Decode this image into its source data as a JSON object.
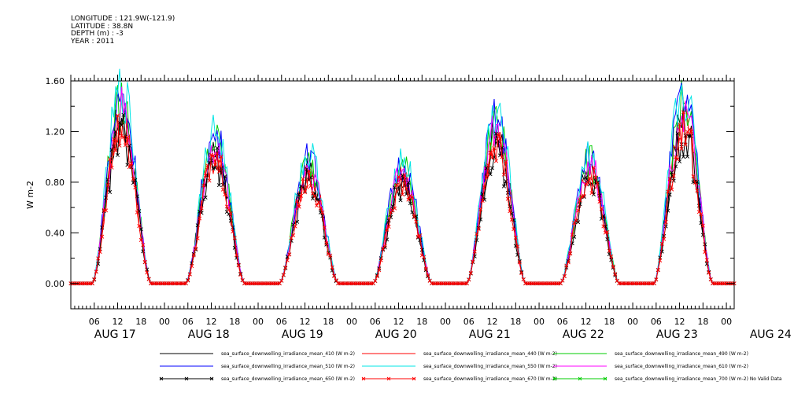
{
  "meta": {
    "longitude": "LONGITUDE : 121.9W(-121.9)",
    "latitude": "LATITUDE : 38.8N",
    "depth": "DEPTH (m) : -3",
    "year": "YEAR : 2011"
  },
  "chart_data": {
    "type": "line",
    "title": "",
    "xlabel": "",
    "ylabel": "W m-2",
    "ylim": [
      -0.2,
      1.6
    ],
    "yticks": [
      "0.00",
      "0.40",
      "0.80",
      "1.20",
      "1.60"
    ],
    "xlim_hours": [
      0,
      170
    ],
    "hour_ticks": [
      "06",
      "12",
      "18",
      "00",
      "06",
      "12",
      "18",
      "00",
      "06",
      "12",
      "18",
      "00",
      "06",
      "12",
      "18",
      "00",
      "06",
      "12",
      "18",
      "00",
      "06",
      "12",
      "18",
      "00",
      "06",
      "12",
      "18",
      "00"
    ],
    "date_labels": [
      "AUG 17",
      "AUG 18",
      "AUG 19",
      "AUG 20",
      "AUG 21",
      "AUG 22",
      "AUG 23",
      "AUG 24"
    ],
    "daily_peaks": {
      "AUG 17": 1.57,
      "AUG 18": 1.24,
      "AUG 19": 1.05,
      "AUG 20": 1.01,
      "AUG 21": 1.38,
      "AUG 22": 1.06,
      "AUG 23": 1.56
    },
    "series": [
      {
        "name": "sea_surface_downwelling_irradiance_mean_410 (W m-2)",
        "color": "#000000",
        "marker": "none",
        "scale": 0.86
      },
      {
        "name": "sea_surface_downwelling_irradiance_mean_440 (W m-2)",
        "color": "#ff0000",
        "marker": "none",
        "scale": 0.84
      },
      {
        "name": "sea_surface_downwelling_irradiance_mean_490 (W m-2)",
        "color": "#00cc00",
        "marker": "none",
        "scale": 0.93
      },
      {
        "name": "sea_surface_downwelling_irradiance_mean_510 (W m-2)",
        "color": "#0000ff",
        "marker": "none",
        "scale": 0.96
      },
      {
        "name": "sea_surface_downwelling_irradiance_mean_550 (W m-2)",
        "color": "#00e5e5",
        "marker": "none",
        "scale": 1.0
      },
      {
        "name": "sea_surface_downwelling_irradiance_mean_610 (W m-2)",
        "color": "#ff00ff",
        "marker": "none",
        "scale": 0.89
      },
      {
        "name": "sea_surface_downwelling_irradiance_mean_650 (W m-2)",
        "color": "#000000",
        "marker": "x",
        "scale": 0.78
      },
      {
        "name": "sea_surface_downwelling_irradiance_mean_670 (W m-2)",
        "color": "#ff0000",
        "marker": "x",
        "scale": 0.8
      },
      {
        "name": "sea_surface_downwelling_irradiance_mean_700 (W m-2) No Valid Data",
        "color": "#00cc00",
        "marker": "x",
        "scale": 0
      }
    ]
  }
}
